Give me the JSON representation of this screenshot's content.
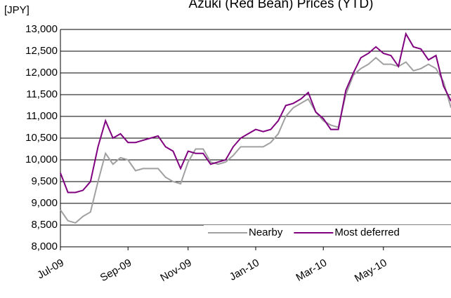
{
  "chart_data": {
    "type": "line",
    "title": "Azuki (Red Bean) Prices (YTD)",
    "y_label": "[JPY]",
    "categories": [
      "Jul-09",
      null,
      null,
      null,
      null,
      null,
      null,
      null,
      null,
      "Sep-09",
      null,
      null,
      null,
      null,
      null,
      null,
      null,
      "Nov-09",
      null,
      null,
      null,
      null,
      null,
      null,
      null,
      null,
      "Jan-10",
      null,
      null,
      null,
      null,
      null,
      null,
      null,
      null,
      "Mar-10",
      null,
      null,
      null,
      null,
      null,
      null,
      null,
      "May-10",
      null,
      null,
      null,
      null,
      null,
      null,
      null,
      null,
      null
    ],
    "series": [
      {
        "name": "Nearby",
        "color": "#a0a0a0",
        "values": [
          8850,
          8600,
          8550,
          8700,
          8800,
          9500,
          10150,
          9900,
          10050,
          10000,
          9750,
          9800,
          9800,
          9800,
          9600,
          9500,
          9450,
          9950,
          10250,
          10250,
          9950,
          9900,
          9950,
          10100,
          10300,
          10300,
          10300,
          10300,
          10400,
          10600,
          11000,
          11200,
          11300,
          11400,
          11100,
          10900,
          10800,
          10750,
          11500,
          11950,
          12100,
          12200,
          12350,
          12200,
          12200,
          12150,
          12250,
          12050,
          12100,
          12200,
          12100,
          11800,
          11200
        ]
      },
      {
        "name": "Most deferred",
        "color": "#800080",
        "values": [
          9700,
          9250,
          9250,
          9300,
          9500,
          10300,
          10900,
          10500,
          10600,
          10400,
          10400,
          10450,
          10500,
          10550,
          10300,
          10200,
          9800,
          10200,
          10150,
          10150,
          9900,
          9950,
          10000,
          10300,
          10500,
          10600,
          10700,
          10650,
          10700,
          10900,
          11250,
          11300,
          11400,
          11550,
          11100,
          10950,
          10700,
          10700,
          11600,
          12000,
          12350,
          12450,
          12600,
          12450,
          12400,
          12150,
          12900,
          12600,
          12550,
          12300,
          12400,
          11700,
          11350
        ]
      }
    ],
    "ylim": [
      8000,
      13000
    ],
    "yticks": [
      {
        "value": 8000,
        "label": "8,000"
      },
      {
        "value": 8500,
        "label": "8,500"
      },
      {
        "value": 9000,
        "label": "9,000"
      },
      {
        "value": 9500,
        "label": "9,500"
      },
      {
        "value": 10000,
        "label": "10,000"
      },
      {
        "value": 10500,
        "label": "10,500"
      },
      {
        "value": 11000,
        "label": "11,000"
      },
      {
        "value": 11500,
        "label": "11,500"
      },
      {
        "value": 12000,
        "label": "12,000"
      },
      {
        "value": 12500,
        "label": "12,500"
      },
      {
        "value": {
          "value": 13000,
          "label": "13,000"
        },
        "label": "13,000"
      }
    ],
    "grid": true,
    "legend": "lower right"
  }
}
